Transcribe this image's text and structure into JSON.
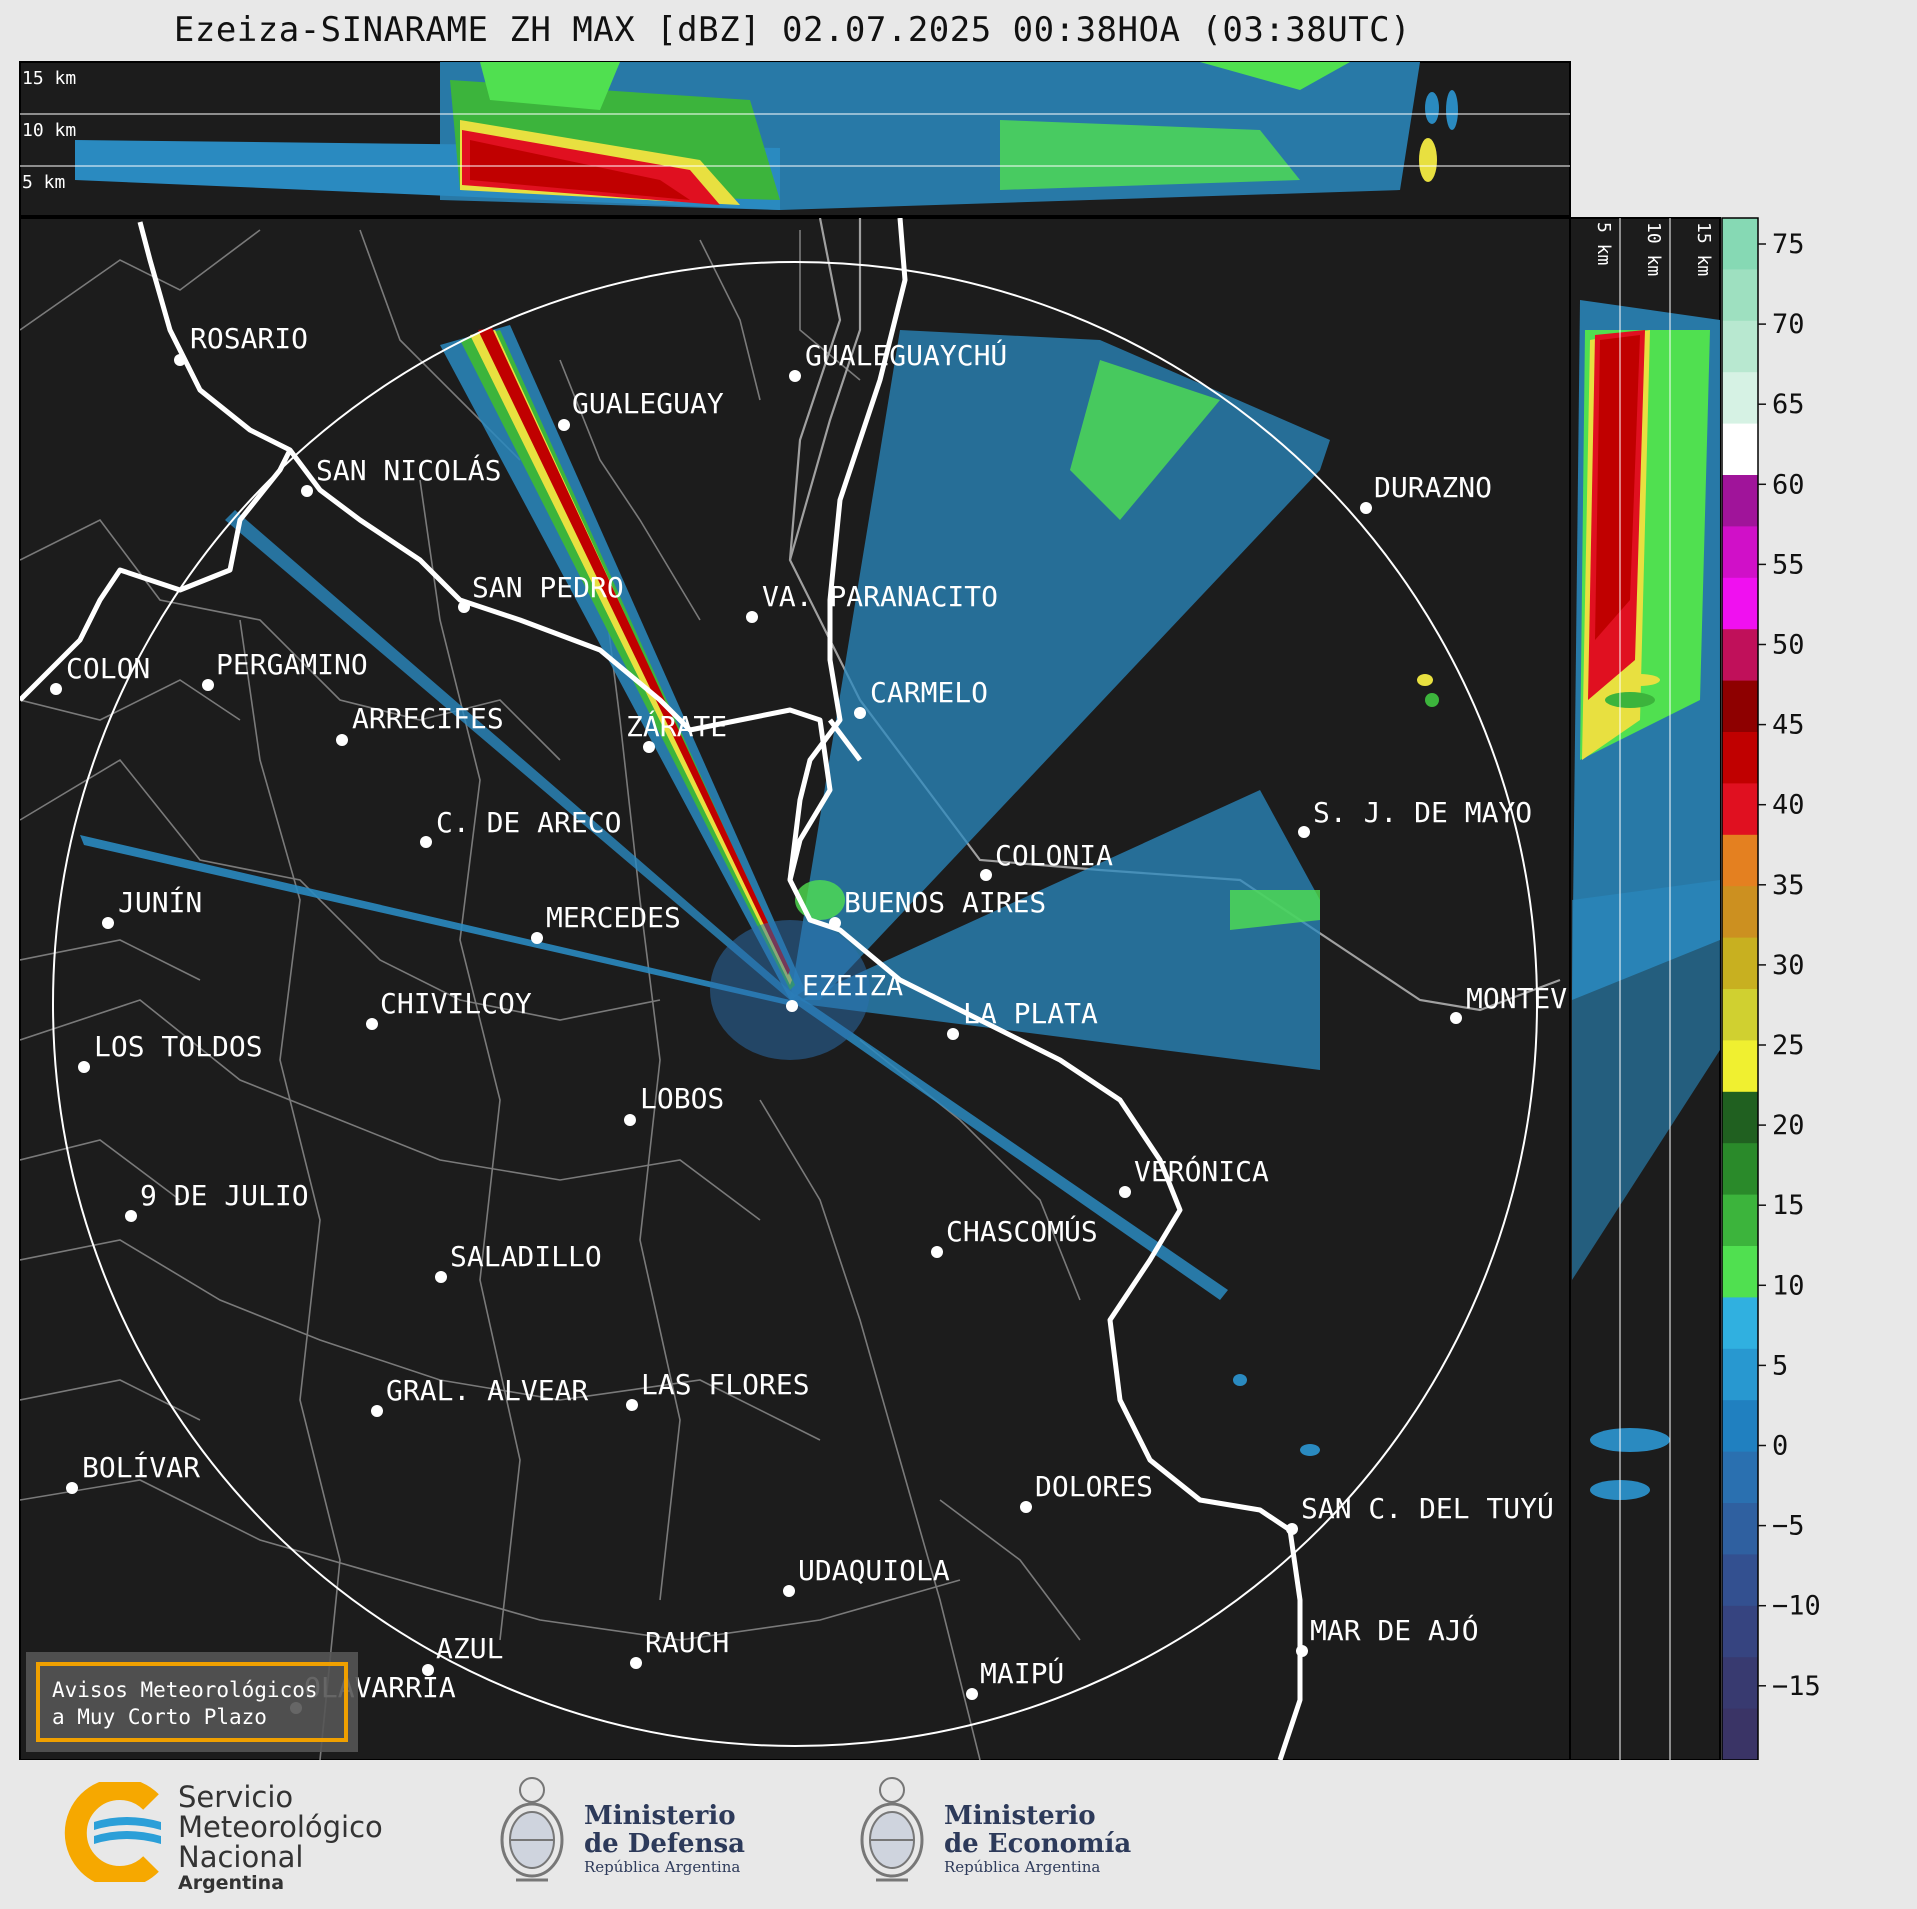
{
  "title": "Ezeiza-SINARAME ZH MAX [dBZ] 02.07.2025 00:38HOA (03:38UTC)",
  "top_panel": {
    "altitude_labels": [
      "15 km",
      "10 km",
      "5 km"
    ]
  },
  "side_panel": {
    "altitude_labels": [
      "5 km",
      "10 km",
      "15 km"
    ]
  },
  "colorbar": {
    "unit": "dBZ",
    "ticks": [
      "75",
      "70",
      "65",
      "60",
      "55",
      "50",
      "45",
      "40",
      "35",
      "30",
      "25",
      "20",
      "15",
      "10",
      "5",
      "0",
      "−5",
      "−10",
      "−15"
    ],
    "colors": [
      "#86d9b4",
      "#9ee0c0",
      "#b8e8d0",
      "#d6f2e4",
      "#ffffff",
      "#a0149a",
      "#d010c8",
      "#f010f0",
      "#c0105a",
      "#8e0000",
      "#c00000",
      "#e01020",
      "#e48020",
      "#cc9020",
      "#c8b020",
      "#d0d030",
      "#f0f030",
      "#206020",
      "#2a8a2a",
      "#3cb43c",
      "#50e050",
      "#30b0e0",
      "#2898d0",
      "#2080c0",
      "#2a70b0",
      "#2f60a0",
      "#335090",
      "#364480",
      "#383a70",
      "#3a3466"
    ]
  },
  "cities": [
    {
      "name": "ROSARIO"
    },
    {
      "name": "GUALEGUAYCHÚ"
    },
    {
      "name": "GUALEGUAY"
    },
    {
      "name": "SAN NICOLÁS"
    },
    {
      "name": "DURAZNO"
    },
    {
      "name": "SAN PEDRO"
    },
    {
      "name": "VA. PARANACITO"
    },
    {
      "name": "COLON"
    },
    {
      "name": "PERGAMINO"
    },
    {
      "name": "CARMELO"
    },
    {
      "name": "ARRECIFES"
    },
    {
      "name": "ZÁRATE"
    },
    {
      "name": "S. J. DE MAYO"
    },
    {
      "name": "C. DE ARECO"
    },
    {
      "name": "COLONIA"
    },
    {
      "name": "BUENOS AIRES"
    },
    {
      "name": "JUNÍN"
    },
    {
      "name": "MERCEDES"
    },
    {
      "name": "EZEIZA"
    },
    {
      "name": "MONTEVIDEO"
    },
    {
      "name": "CHIVILCOY"
    },
    {
      "name": "LA PLATA"
    },
    {
      "name": "LOS TOLDOS"
    },
    {
      "name": "LOBOS"
    },
    {
      "name": "VERÓNICA"
    },
    {
      "name": "9 DE JULIO"
    },
    {
      "name": "CHASCOMÚS"
    },
    {
      "name": "SALADILLO"
    },
    {
      "name": "GRAL. ALVEAR"
    },
    {
      "name": "LAS FLORES"
    },
    {
      "name": "BOLÍVAR"
    },
    {
      "name": "DOLORES"
    },
    {
      "name": "SAN C. DEL TUYÚ"
    },
    {
      "name": "UDAQUIOLA"
    },
    {
      "name": "AZUL"
    },
    {
      "name": "RAUCH"
    },
    {
      "name": "MAR DE AJÓ"
    },
    {
      "name": "MAIPÚ"
    },
    {
      "name": "OLAVARRÍA"
    }
  ],
  "badge": {
    "line1": "Avisos Meteorológicos",
    "line2": "a Muy Corto Plazo"
  },
  "footer": {
    "smn": {
      "line1": "Servicio",
      "line2": "Meteorológico",
      "line3": "Nacional",
      "line4": "Argentina"
    },
    "defensa": {
      "line1": "Ministerio",
      "line2": "de Defensa",
      "line3": "República Argentina"
    },
    "economia": {
      "line1": "Ministerio",
      "line2": "de Economía",
      "line3": "República Argentina"
    }
  }
}
